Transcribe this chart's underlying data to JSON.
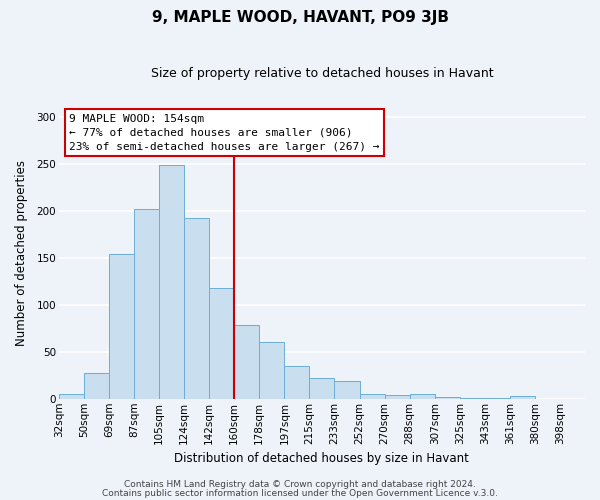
{
  "title": "9, MAPLE WOOD, HAVANT, PO9 3JB",
  "subtitle": "Size of property relative to detached houses in Havant",
  "xlabel": "Distribution of detached houses by size in Havant",
  "ylabel": "Number of detached properties",
  "bar_labels": [
    "32sqm",
    "50sqm",
    "69sqm",
    "87sqm",
    "105sqm",
    "124sqm",
    "142sqm",
    "160sqm",
    "178sqm",
    "197sqm",
    "215sqm",
    "233sqm",
    "252sqm",
    "270sqm",
    "288sqm",
    "307sqm",
    "325sqm",
    "343sqm",
    "361sqm",
    "380sqm",
    "398sqm"
  ],
  "bar_values": [
    5,
    27,
    154,
    202,
    249,
    193,
    118,
    79,
    61,
    35,
    22,
    19,
    5,
    4,
    5,
    2,
    1,
    1,
    3,
    0
  ],
  "bar_face_color": "#c9dff0",
  "bar_edge_color": "#6baed6",
  "reference_line_color": "#cc0000",
  "annotation_title": "9 MAPLE WOOD: 154sqm",
  "annotation_line1": "← 77% of detached houses are smaller (906)",
  "annotation_line2": "23% of semi-detached houses are larger (267) →",
  "annotation_box_facecolor": "#ffffff",
  "annotation_box_edgecolor": "#cc0000",
  "ylim": [
    0,
    310
  ],
  "yticks": [
    0,
    50,
    100,
    150,
    200,
    250,
    300
  ],
  "footer1": "Contains HM Land Registry data © Crown copyright and database right 2024.",
  "footer2": "Contains public sector information licensed under the Open Government Licence v.3.0.",
  "background_color": "#eef2f9",
  "grid_color": "#ffffff",
  "title_fontsize": 11,
  "subtitle_fontsize": 9,
  "axis_label_fontsize": 8.5,
  "tick_fontsize": 7.5,
  "footer_fontsize": 6.5,
  "annotation_fontsize": 8
}
